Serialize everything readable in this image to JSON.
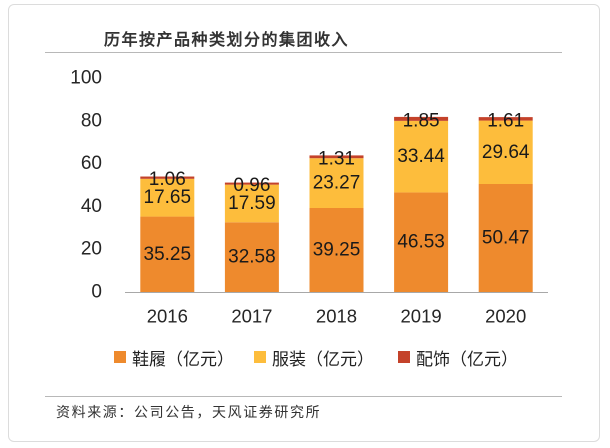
{
  "source": "资料来源：公司公告，天风证券研究所",
  "chart_data": {
    "type": "bar",
    "stacked": true,
    "title": "历年按产品种类划分的集团收入",
    "xlabel": "",
    "ylabel": "",
    "categories": [
      "2016",
      "2017",
      "2018",
      "2019",
      "2020"
    ],
    "series": [
      {
        "name": "鞋履（亿元）",
        "color": "#EE8A2D",
        "values": [
          35.25,
          32.58,
          39.25,
          46.53,
          50.47
        ]
      },
      {
        "name": "服装（亿元）",
        "color": "#FDBD3C",
        "values": [
          17.65,
          17.59,
          23.27,
          33.44,
          29.64
        ]
      },
      {
        "name": "配饰（亿元）",
        "color": "#C4422A",
        "values": [
          1.06,
          0.96,
          1.31,
          1.85,
          1.61
        ]
      }
    ],
    "ylim": [
      0,
      100
    ],
    "yticks": [
      0,
      20,
      40,
      60,
      80,
      100
    ],
    "grid": false,
    "legend": "bottom",
    "data_labels": true
  }
}
